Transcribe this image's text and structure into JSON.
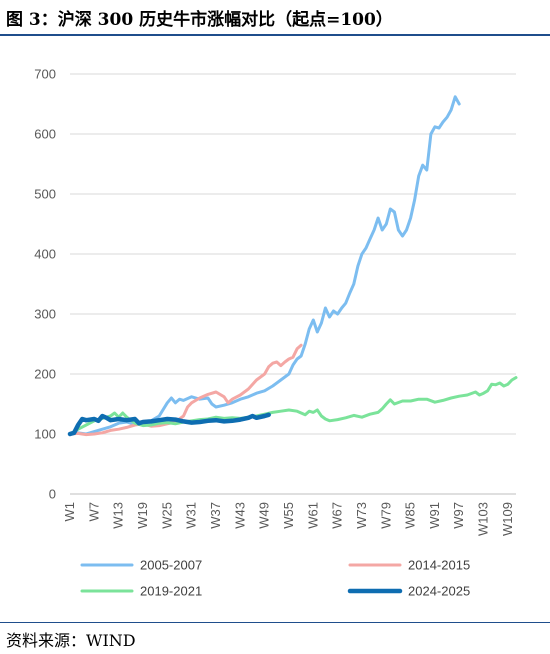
{
  "header": {
    "title": "图 3：沪深 300 历史牛市涨幅对比（起点=100）"
  },
  "footer": {
    "source": "资料来源：WIND"
  },
  "chart_data": {
    "type": "line",
    "title": "图 3：沪深 300 历史牛市涨幅对比（起点=100）",
    "xlabel": "",
    "ylabel": "",
    "ylim": [
      0,
      700
    ],
    "yticks": [
      0,
      100,
      200,
      300,
      400,
      500,
      600,
      700
    ],
    "x_count": 111,
    "x_tick_labels": [
      "W1",
      "W7",
      "W13",
      "W19",
      "W25",
      "W31",
      "W37",
      "W43",
      "W49",
      "W55",
      "W61",
      "W67",
      "W73",
      "W79",
      "W85",
      "W91",
      "W97",
      "W103",
      "W109"
    ],
    "x_tick_positions": [
      1,
      7,
      13,
      19,
      25,
      31,
      37,
      43,
      49,
      55,
      61,
      67,
      73,
      79,
      85,
      91,
      97,
      103,
      109
    ],
    "grid": true,
    "legend": "bottom",
    "series": [
      {
        "name": "2005-2007",
        "color": "#7cbdf0",
        "width": 3,
        "points": [
          [
            1,
            100
          ],
          [
            3,
            102
          ],
          [
            5,
            100
          ],
          [
            7,
            104
          ],
          [
            9,
            108
          ],
          [
            11,
            112
          ],
          [
            13,
            118
          ],
          [
            15,
            120
          ],
          [
            17,
            116
          ],
          [
            19,
            118
          ],
          [
            21,
            122
          ],
          [
            23,
            130
          ],
          [
            25,
            152
          ],
          [
            26,
            160
          ],
          [
            27,
            152
          ],
          [
            28,
            158
          ],
          [
            29,
            156
          ],
          [
            31,
            162
          ],
          [
            33,
            158
          ],
          [
            35,
            160
          ],
          [
            36,
            150
          ],
          [
            37,
            145
          ],
          [
            39,
            148
          ],
          [
            41,
            152
          ],
          [
            43,
            158
          ],
          [
            45,
            162
          ],
          [
            47,
            168
          ],
          [
            49,
            172
          ],
          [
            51,
            180
          ],
          [
            53,
            190
          ],
          [
            55,
            200
          ],
          [
            56,
            215
          ],
          [
            57,
            225
          ],
          [
            58,
            230
          ],
          [
            59,
            250
          ],
          [
            60,
            275
          ],
          [
            61,
            290
          ],
          [
            62,
            270
          ],
          [
            63,
            285
          ],
          [
            64,
            310
          ],
          [
            65,
            295
          ],
          [
            66,
            305
          ],
          [
            67,
            300
          ],
          [
            68,
            310
          ],
          [
            69,
            318
          ],
          [
            70,
            335
          ],
          [
            71,
            350
          ],
          [
            72,
            380
          ],
          [
            73,
            400
          ],
          [
            74,
            410
          ],
          [
            75,
            425
          ],
          [
            76,
            440
          ],
          [
            77,
            460
          ],
          [
            78,
            440
          ],
          [
            79,
            450
          ],
          [
            80,
            475
          ],
          [
            81,
            470
          ],
          [
            82,
            440
          ],
          [
            83,
            430
          ],
          [
            84,
            440
          ],
          [
            85,
            460
          ],
          [
            86,
            490
          ],
          [
            87,
            530
          ],
          [
            88,
            548
          ],
          [
            89,
            540
          ],
          [
            90,
            600
          ],
          [
            91,
            612
          ],
          [
            92,
            610
          ],
          [
            93,
            620
          ],
          [
            94,
            628
          ],
          [
            95,
            640
          ],
          [
            96,
            662
          ],
          [
            97,
            650
          ]
        ]
      },
      {
        "name": "2014-2015",
        "color": "#f4a7a4",
        "width": 3,
        "points": [
          [
            1,
            100
          ],
          [
            3,
            101
          ],
          [
            5,
            99
          ],
          [
            7,
            100
          ],
          [
            9,
            102
          ],
          [
            11,
            106
          ],
          [
            13,
            108
          ],
          [
            15,
            111
          ],
          [
            17,
            115
          ],
          [
            19,
            117
          ],
          [
            21,
            113
          ],
          [
            23,
            114
          ],
          [
            25,
            117
          ],
          [
            27,
            120
          ],
          [
            29,
            130
          ],
          [
            30,
            145
          ],
          [
            31,
            152
          ],
          [
            33,
            160
          ],
          [
            35,
            166
          ],
          [
            37,
            170
          ],
          [
            39,
            162
          ],
          [
            40,
            152
          ],
          [
            41,
            158
          ],
          [
            43,
            165
          ],
          [
            45,
            175
          ],
          [
            47,
            190
          ],
          [
            49,
            200
          ],
          [
            50,
            212
          ],
          [
            51,
            218
          ],
          [
            52,
            220
          ],
          [
            53,
            214
          ],
          [
            54,
            220
          ],
          [
            55,
            225
          ],
          [
            56,
            228
          ],
          [
            57,
            242
          ],
          [
            58,
            248
          ]
        ]
      },
      {
        "name": "2019-2021",
        "color": "#7be39a",
        "width": 3,
        "points": [
          [
            1,
            100
          ],
          [
            3,
            108
          ],
          [
            5,
            115
          ],
          [
            7,
            122
          ],
          [
            9,
            126
          ],
          [
            11,
            130
          ],
          [
            12,
            135
          ],
          [
            13,
            128
          ],
          [
            14,
            135
          ],
          [
            15,
            128
          ],
          [
            17,
            118
          ],
          [
            19,
            114
          ],
          [
            21,
            115
          ],
          [
            23,
            118
          ],
          [
            25,
            119
          ],
          [
            27,
            117
          ],
          [
            29,
            120
          ],
          [
            31,
            122
          ],
          [
            33,
            124
          ],
          [
            35,
            125
          ],
          [
            37,
            128
          ],
          [
            39,
            126
          ],
          [
            41,
            127
          ],
          [
            43,
            126
          ],
          [
            45,
            128
          ],
          [
            47,
            130
          ],
          [
            49,
            133
          ],
          [
            51,
            136
          ],
          [
            53,
            138
          ],
          [
            55,
            140
          ],
          [
            57,
            138
          ],
          [
            59,
            132
          ],
          [
            60,
            138
          ],
          [
            61,
            136
          ],
          [
            62,
            140
          ],
          [
            63,
            130
          ],
          [
            64,
            125
          ],
          [
            65,
            122
          ],
          [
            67,
            124
          ],
          [
            69,
            127
          ],
          [
            71,
            131
          ],
          [
            73,
            128
          ],
          [
            75,
            133
          ],
          [
            77,
            136
          ],
          [
            78,
            142
          ],
          [
            79,
            150
          ],
          [
            80,
            157
          ],
          [
            81,
            150
          ],
          [
            83,
            155
          ],
          [
            85,
            155
          ],
          [
            87,
            158
          ],
          [
            89,
            158
          ],
          [
            91,
            153
          ],
          [
            93,
            156
          ],
          [
            95,
            160
          ],
          [
            97,
            163
          ],
          [
            99,
            165
          ],
          [
            101,
            170
          ],
          [
            102,
            165
          ],
          [
            103,
            168
          ],
          [
            104,
            172
          ],
          [
            105,
            183
          ],
          [
            106,
            182
          ],
          [
            107,
            185
          ],
          [
            108,
            180
          ],
          [
            109,
            183
          ],
          [
            110,
            190
          ],
          [
            111,
            194
          ]
        ]
      },
      {
        "name": "2024-2025",
        "color": "#0e6db1",
        "width": 4.5,
        "points": [
          [
            1,
            100
          ],
          [
            2,
            102
          ],
          [
            3,
            115
          ],
          [
            4,
            125
          ],
          [
            5,
            123
          ],
          [
            7,
            125
          ],
          [
            8,
            122
          ],
          [
            9,
            130
          ],
          [
            10,
            127
          ],
          [
            11,
            123
          ],
          [
            13,
            125
          ],
          [
            15,
            123
          ],
          [
            17,
            125
          ],
          [
            18,
            118
          ],
          [
            19,
            120
          ],
          [
            21,
            121
          ],
          [
            23,
            123
          ],
          [
            25,
            125
          ],
          [
            27,
            124
          ],
          [
            29,
            121
          ],
          [
            31,
            119
          ],
          [
            33,
            120
          ],
          [
            35,
            122
          ],
          [
            37,
            123
          ],
          [
            39,
            121
          ],
          [
            41,
            122
          ],
          [
            43,
            124
          ],
          [
            45,
            127
          ],
          [
            46,
            130
          ],
          [
            47,
            127
          ],
          [
            49,
            130
          ],
          [
            50,
            132
          ]
        ]
      }
    ]
  }
}
